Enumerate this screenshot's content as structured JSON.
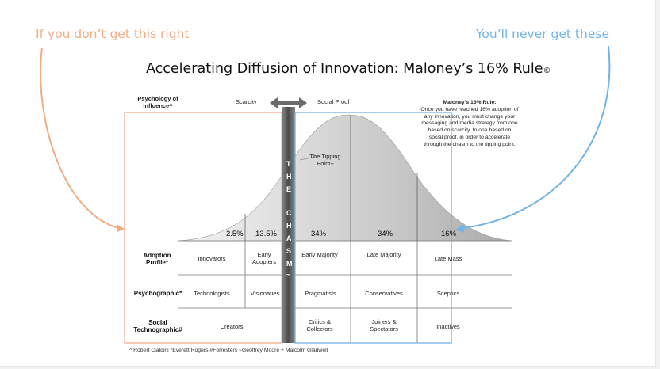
{
  "header": {
    "left_warning": "If you don’t get this right",
    "right_warning": "You’ll never get these",
    "title": "Accelerating Diffusion of Innovation: Maloney’s 16% Rule",
    "title_mark": "©"
  },
  "top_axis": {
    "psychology_label": "Psychology of Influence^",
    "scarcity": "Scarcity",
    "social_proof": "Social Proof"
  },
  "rule_note": {
    "heading": "Maloney’s 16% Rule:",
    "body": "Once you have reached 16% adoption of any innovation, you must change your messaging and media strategy from one based on scarcity, to one based on social proof, in order to accelerate through the chasm to the tipping point."
  },
  "tipping_point": "The Tipping Point+",
  "chasm_letters": [
    "T",
    "H",
    "E",
    "C",
    "H",
    "A",
    "S",
    "M",
    "~"
  ],
  "percentages": [
    "2.5%",
    "13.5%",
    "34%",
    "34%",
    "16%"
  ],
  "rows": {
    "adoption_label": "Adoption Profile*",
    "psychographic_label": "Psychographic*",
    "social_label": "Social Technographic#",
    "adoption": [
      "Innovators",
      "Early Adopters",
      "Early Majority",
      "Late Majority",
      "Late Mass"
    ],
    "psychographic": [
      "Technologists",
      "Visionaries",
      "Pragmatists",
      "Conservatives",
      "Sceptics"
    ],
    "social": [
      "Creators",
      "Critics & Collectors",
      "Joiners & Spectators",
      "Inactives"
    ]
  },
  "footer": "^ Robert Cialdini *Everett Rogers #Forresters ~Geoffrey Moore + Malcolm Gladwell",
  "colors": {
    "orange": "#f2ad85",
    "blue": "#72b4e5",
    "curve_light": "#e6e6e6",
    "curve_mid": "#c7c7c7",
    "curve_dark": "#a6a6a6",
    "chasm": "#5c5c5c"
  }
}
